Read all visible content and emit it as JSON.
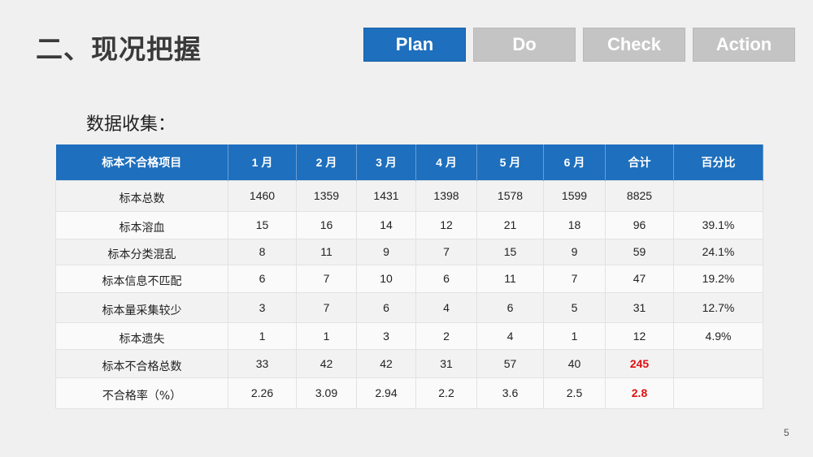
{
  "title": "二、现况把握",
  "tabs": [
    {
      "label": "Plan",
      "active": true
    },
    {
      "label": "Do"
    },
    {
      "label": "Check"
    },
    {
      "label": "Action"
    }
  ],
  "subtitle": "数据收集：",
  "table": {
    "headers": [
      "标本不合格项目",
      "1 月",
      "2 月",
      "3 月",
      "4 月",
      "5 月",
      "6 月",
      "合计",
      "百分比"
    ],
    "rows": [
      [
        "标本总数",
        "1460",
        "1359",
        "1431",
        "1398",
        "1578",
        "1599",
        "8825",
        ""
      ],
      [
        "标本溶血",
        "15",
        "16",
        "14",
        "12",
        "21",
        "18",
        "96",
        "39.1%"
      ],
      [
        "标本分类混乱",
        "8",
        "11",
        "9",
        "7",
        "15",
        "9",
        "59",
        "24.1%"
      ],
      [
        "标本信息不匹配",
        "6",
        "7",
        "10",
        "6",
        "11",
        "7",
        "47",
        "19.2%"
      ],
      [
        "标本量采集较少",
        "3",
        "7",
        "6",
        "4",
        "6",
        "5",
        "31",
        "12.7%"
      ],
      [
        "标本遗失",
        "1",
        "1",
        "3",
        "2",
        "4",
        "1",
        "12",
        "4.9%"
      ],
      [
        "标本不合格总数",
        "33",
        "42",
        "42",
        "31",
        "57",
        "40",
        "245",
        ""
      ],
      [
        "不合格率（%）",
        "2.26",
        "3.09",
        "2.94",
        "2.2",
        "3.6",
        "2.5",
        "2.8",
        ""
      ]
    ],
    "highlight_color": "#e01010"
  },
  "page_number": "5",
  "colors": {
    "accent": "#1e6fbd",
    "inactive_tab": "#c4c4c4"
  }
}
